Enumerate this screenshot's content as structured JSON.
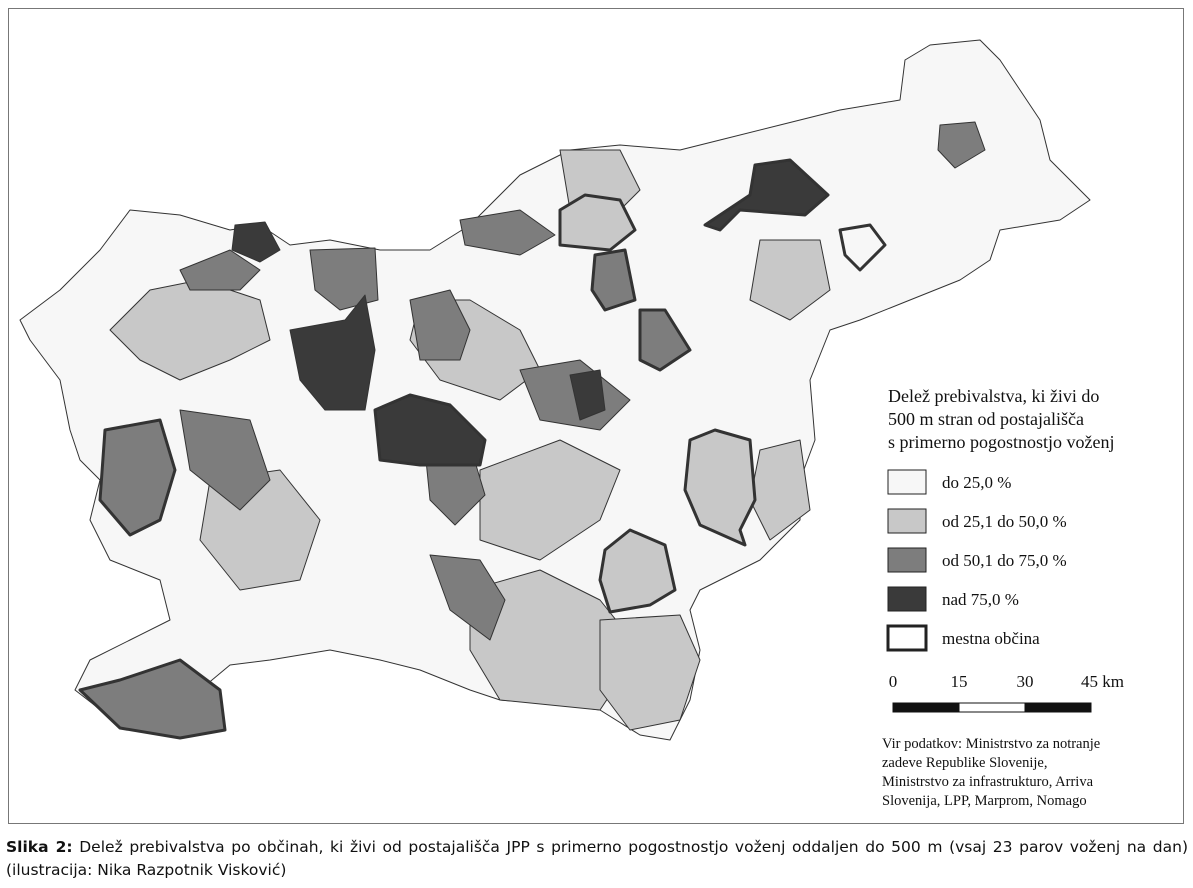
{
  "map": {
    "legend": {
      "title": [
        "Delež prebivalstva, ki živi do",
        "500 m stran od postajališča",
        "s primerno pogostnostjo voženj"
      ],
      "items": [
        {
          "label": "do 25,0 %",
          "color": "#f7f7f7"
        },
        {
          "label": "od 25,1 do 50,0 %",
          "color": "#c8c8c8"
        },
        {
          "label": "od 50,1 do 75,0 %",
          "color": "#7d7d7d"
        },
        {
          "label": "nad 75,0 %",
          "color": "#3a3a3a"
        },
        {
          "label": "mestna občina",
          "color": "#ffffff"
        }
      ]
    },
    "scale": {
      "ticks": [
        0,
        15,
        30,
        {
          "value": 45,
          "label": "45 km"
        }
      ]
    },
    "source": [
      "Vir podatkov: Ministrstvo za notranje",
      "zadeve Republike Slovenije,",
      "Ministrstvo za infrastrukturo, Arriva",
      "Slovenija, LPP, Marprom, Nomago"
    ]
  },
  "caption": {
    "label": "Slika 2:",
    "text": "Delež prebivalstva po občinah, ki živi od postajališča JPP s primerno pogostnostjo voženj oddaljen do 500 m (vsaj 23 parov voženj na dan) (ilustracija: Nika Razpotnik Visković)"
  }
}
